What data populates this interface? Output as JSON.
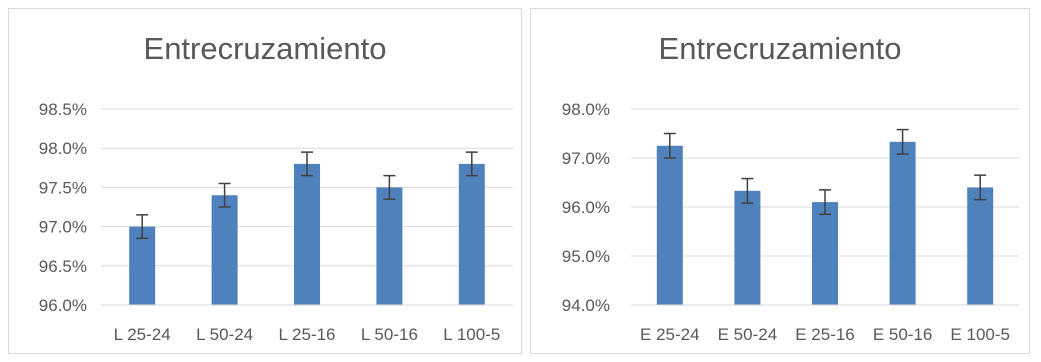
{
  "chart_data": [
    {
      "type": "bar",
      "title": "Entrecruzamiento",
      "categories": [
        "L 25-24",
        "L 50-24",
        "L 25-16",
        "L 50-16",
        "L 100-5"
      ],
      "values": [
        97.0,
        97.4,
        97.8,
        97.5,
        97.8
      ],
      "error": [
        0.15,
        0.15,
        0.15,
        0.15,
        0.15
      ],
      "yticks": [
        "96.0%",
        "96.5%",
        "97.0%",
        "97.5%",
        "98.0%",
        "98.5%"
      ],
      "ylim": [
        96.0,
        98.5
      ],
      "grid": true,
      "color": "#4f81bd"
    },
    {
      "type": "bar",
      "title": "Entrecruzamiento",
      "categories": [
        "E 25-24",
        "E 50-24",
        "E 25-16",
        "E 50-16",
        "E 100-5"
      ],
      "values": [
        97.25,
        96.33,
        96.1,
        97.33,
        96.4
      ],
      "error": [
        0.25,
        0.25,
        0.25,
        0.25,
        0.25
      ],
      "yticks": [
        "94.0%",
        "95.0%",
        "96.0%",
        "97.0%",
        "98.0%"
      ],
      "ylim": [
        94.0,
        98.0
      ],
      "grid": true,
      "color": "#4f81bd"
    }
  ]
}
